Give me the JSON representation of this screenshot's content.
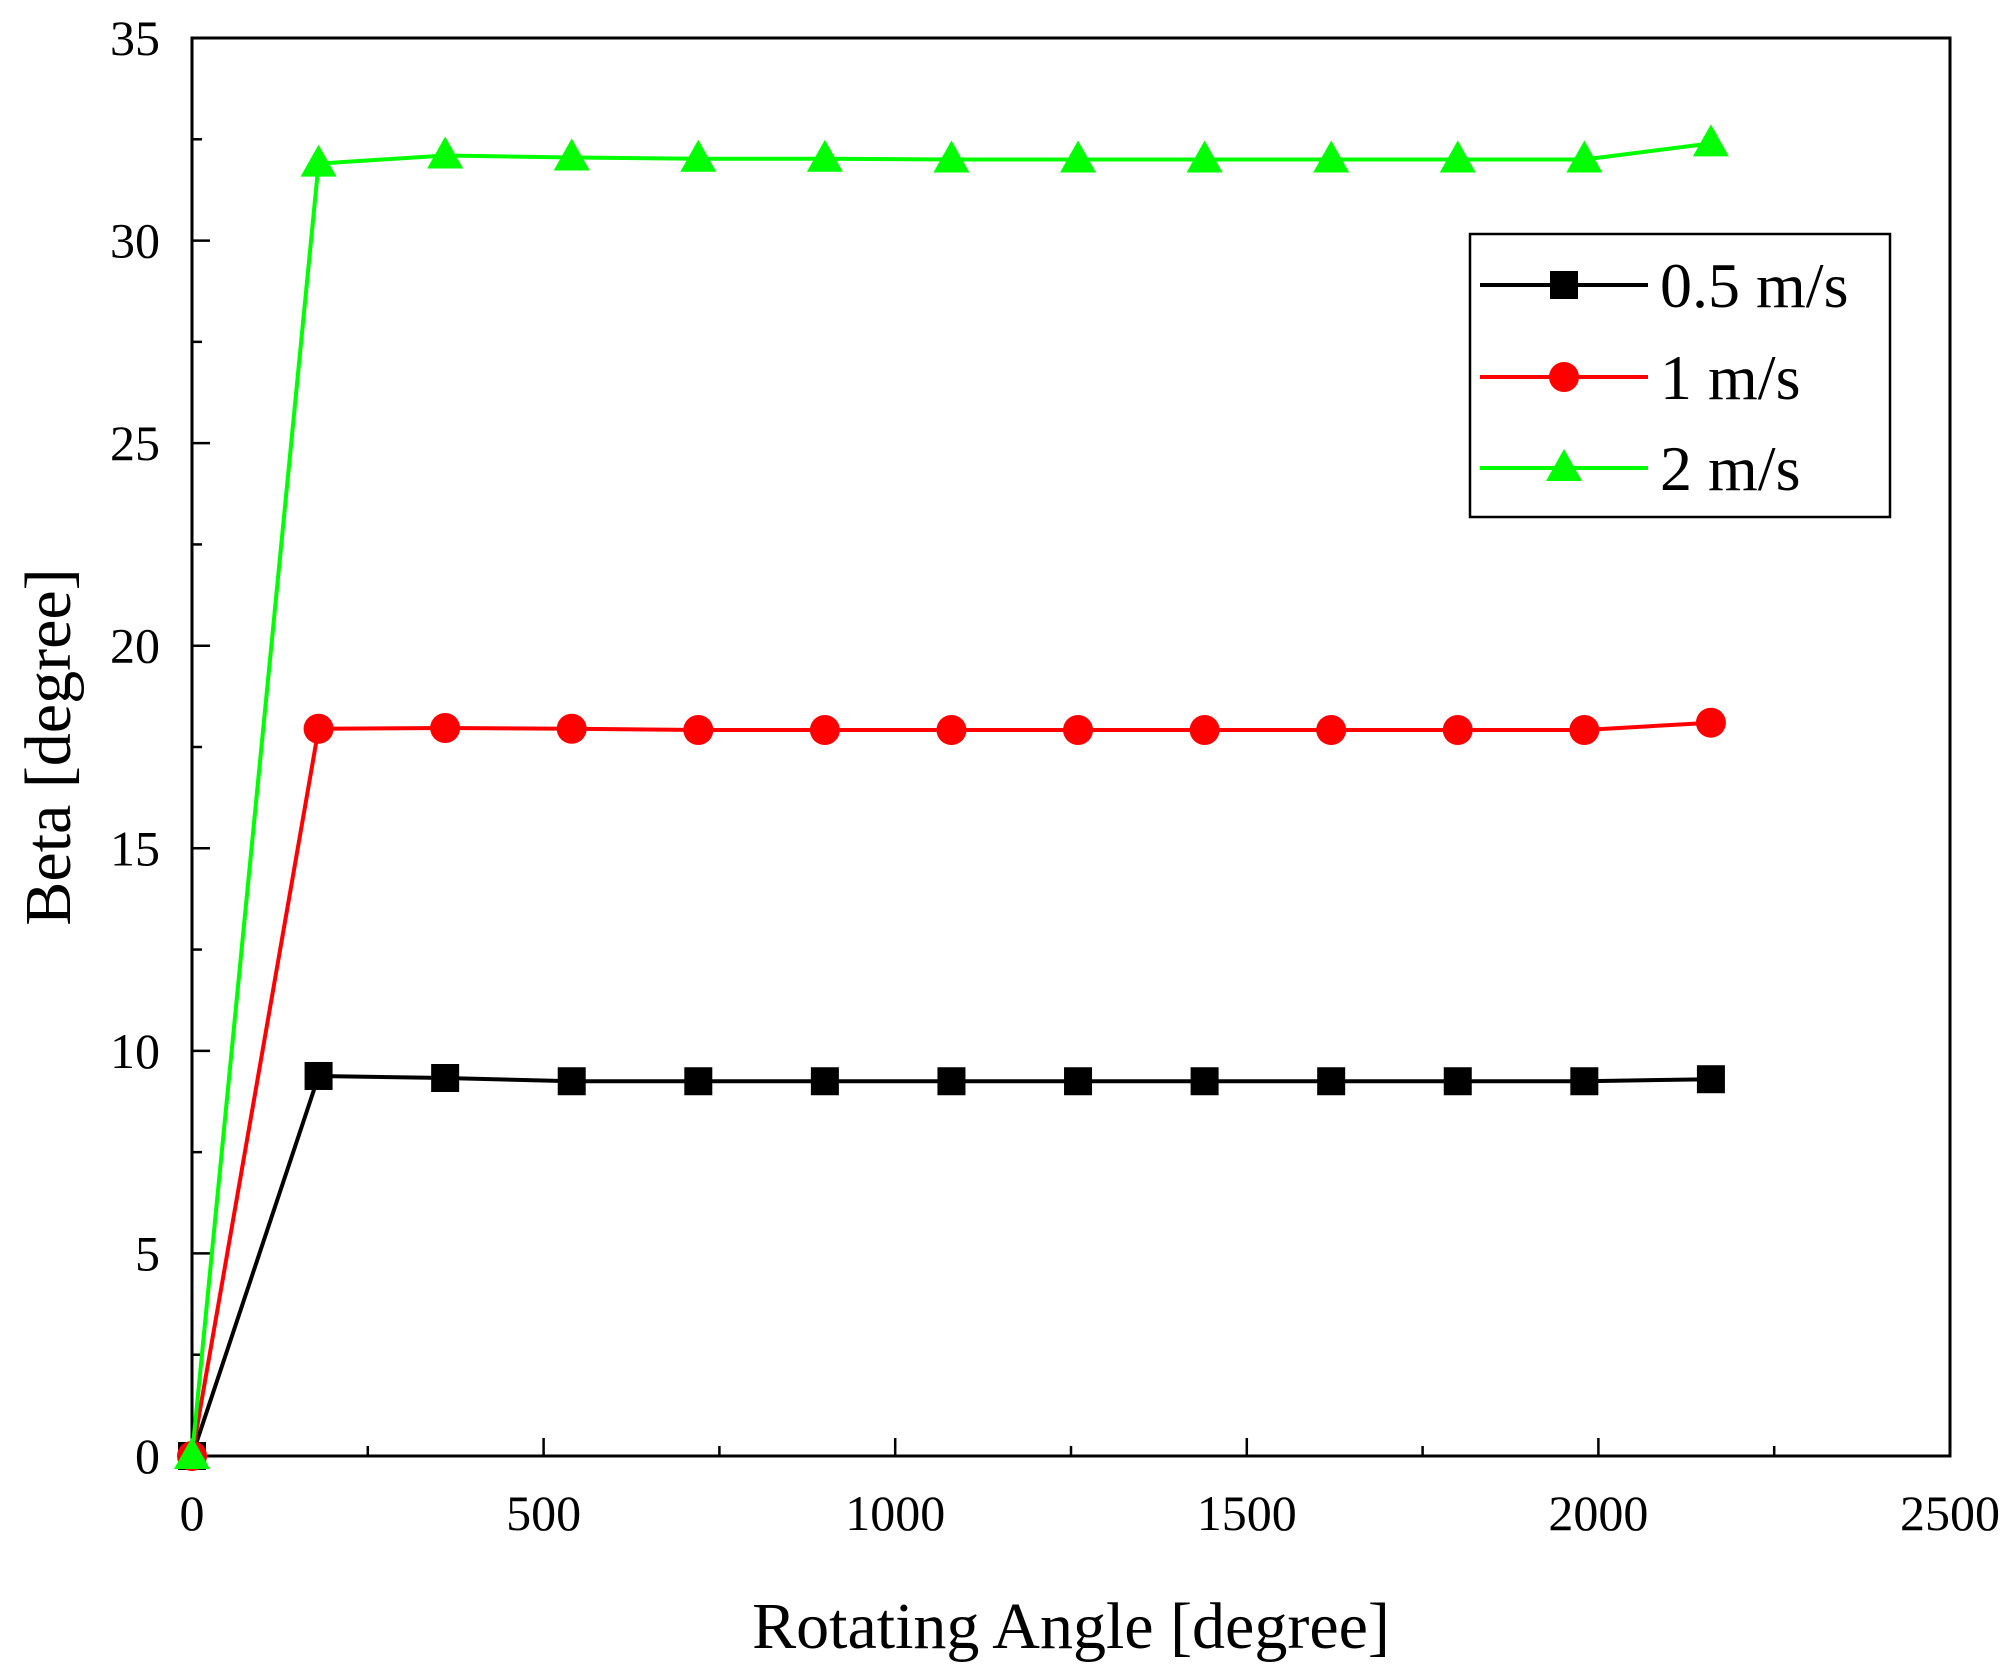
{
  "chart_data": {
    "type": "line",
    "xlabel": "Rotating Angle [degree]",
    "ylabel": "Beta [degree]",
    "xlim": [
      0,
      2500
    ],
    "ylim": [
      0,
      35
    ],
    "x_ticks": [
      0,
      500,
      1000,
      1500,
      2000,
      2500
    ],
    "y_ticks": [
      0,
      5,
      10,
      15,
      20,
      25,
      30,
      35
    ],
    "x_tick_labels": [
      "0",
      "500",
      "1000",
      "1500",
      "2000",
      "2500"
    ],
    "y_tick_labels": [
      "0",
      "5",
      "10",
      "15",
      "20",
      "25",
      "30",
      "35"
    ],
    "grid": false,
    "legend_position": "top-right",
    "x": [
      0,
      180,
      360,
      540,
      720,
      900,
      1080,
      1260,
      1440,
      1620,
      1800,
      1980,
      2160
    ],
    "series": [
      {
        "name": "0.5 m/s",
        "color": "#000000",
        "marker": "square",
        "values": [
          0,
          9.38,
          9.33,
          9.25,
          9.25,
          9.25,
          9.25,
          9.25,
          9.25,
          9.25,
          9.25,
          9.25,
          9.3
        ]
      },
      {
        "name": "1 m/s",
        "color": "#ff0000",
        "marker": "circle",
        "values": [
          0,
          17.95,
          17.97,
          17.95,
          17.92,
          17.92,
          17.92,
          17.92,
          17.92,
          17.92,
          17.92,
          17.92,
          18.1
        ]
      },
      {
        "name": "2 m/s",
        "color": "#00ff00",
        "marker": "triangle",
        "values": [
          0,
          31.9,
          32.1,
          32.05,
          32.02,
          32.02,
          32.0,
          32.0,
          32.0,
          32.0,
          32.0,
          32.0,
          32.4
        ]
      }
    ]
  }
}
